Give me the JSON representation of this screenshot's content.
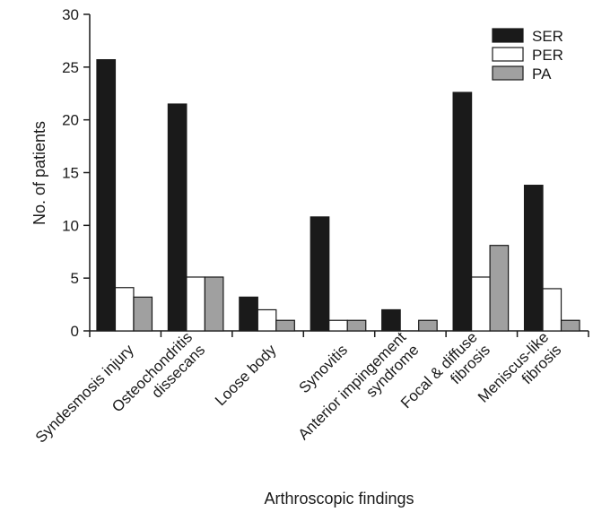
{
  "chart_data": {
    "type": "bar",
    "title": "",
    "xlabel": "Arthroscopic findings",
    "ylabel": "No. of patients",
    "ylim": [
      0,
      30
    ],
    "yticks": [
      0,
      5,
      10,
      15,
      20,
      25,
      30
    ],
    "categories": [
      [
        "Syndesmosis injury"
      ],
      [
        "Osteochondritis",
        "dissecans"
      ],
      [
        "Loose body"
      ],
      [
        "Synovitis"
      ],
      [
        "Anterior impingement",
        "syndrome"
      ],
      [
        "Focal & diffuse",
        "fibrosis"
      ],
      [
        "Meniscus-like",
        "fibrosis"
      ]
    ],
    "series": [
      {
        "name": "SER",
        "color": "#1a1a1a",
        "values": [
          25.7,
          21.5,
          3.2,
          10.8,
          2.0,
          22.6,
          13.8
        ]
      },
      {
        "name": "PER",
        "color": "#ffffff",
        "values": [
          4.1,
          5.1,
          2.0,
          1.0,
          0,
          5.1,
          4.0
        ]
      },
      {
        "name": "PA",
        "color": "#a0a0a0",
        "values": [
          3.2,
          5.1,
          1.0,
          1.0,
          1.0,
          8.1,
          1.0
        ]
      }
    ],
    "legend_position": "top-right",
    "grid": false
  }
}
